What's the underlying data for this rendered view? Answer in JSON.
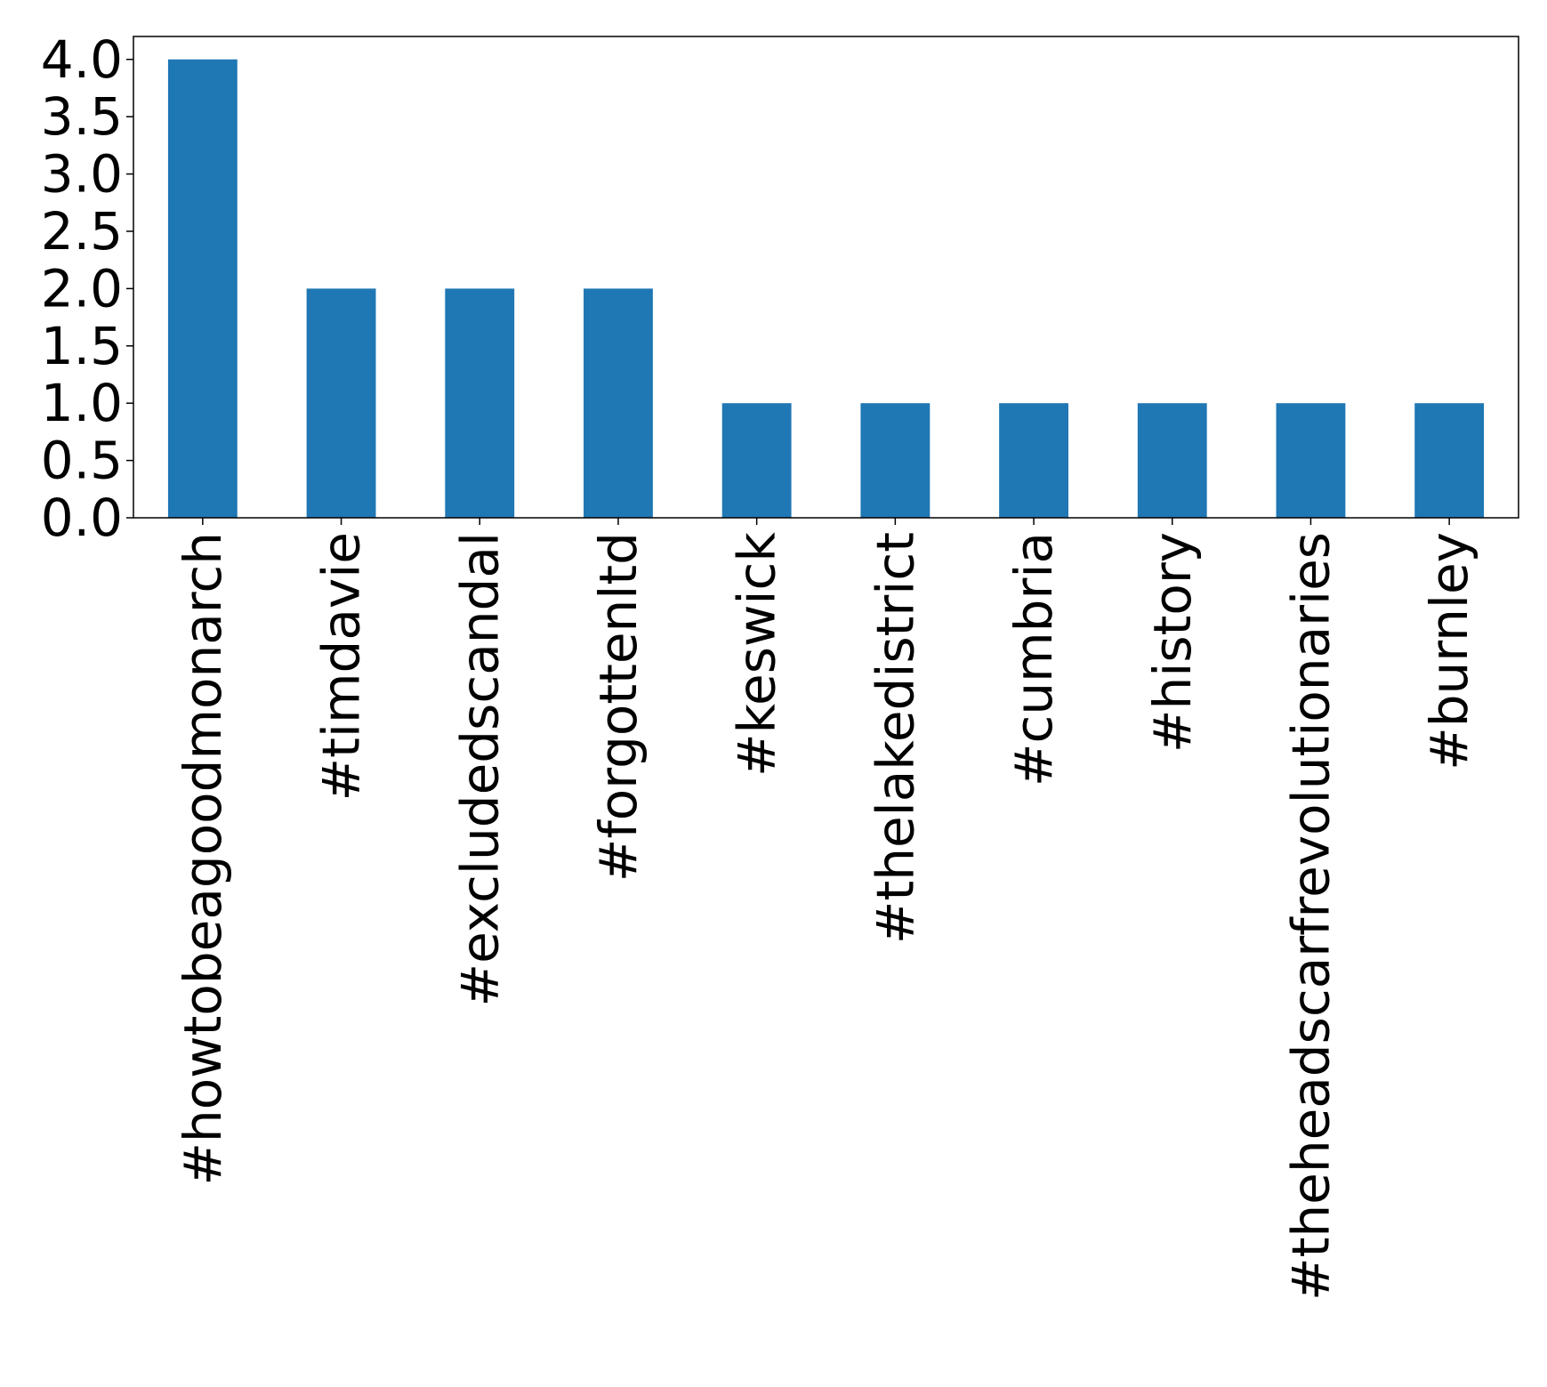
{
  "chart_data": {
    "type": "bar",
    "categories": [
      "#howtobeagoodmonarch",
      "#timdavie",
      "#excludedscandal",
      "#forgottenltd",
      "#keswick",
      "#thelakedistrict",
      "#cumbria",
      "#history",
      "#theheadscarfrevolutionaries",
      "#burnley"
    ],
    "values": [
      4,
      2,
      2,
      2,
      1,
      1,
      1,
      1,
      1,
      1
    ],
    "ylim": [
      0,
      4.2
    ],
    "yticks": [
      "0.0",
      "0.5",
      "1.0",
      "1.5",
      "2.0",
      "2.5",
      "3.0",
      "3.5",
      "4.0"
    ],
    "ytick_values": [
      0,
      0.5,
      1.0,
      1.5,
      2.0,
      2.5,
      3.0,
      3.5,
      4.0
    ],
    "bar_color": "#1f77b4",
    "grid": false,
    "legend": false,
    "xtick_rotation": "vertical"
  }
}
